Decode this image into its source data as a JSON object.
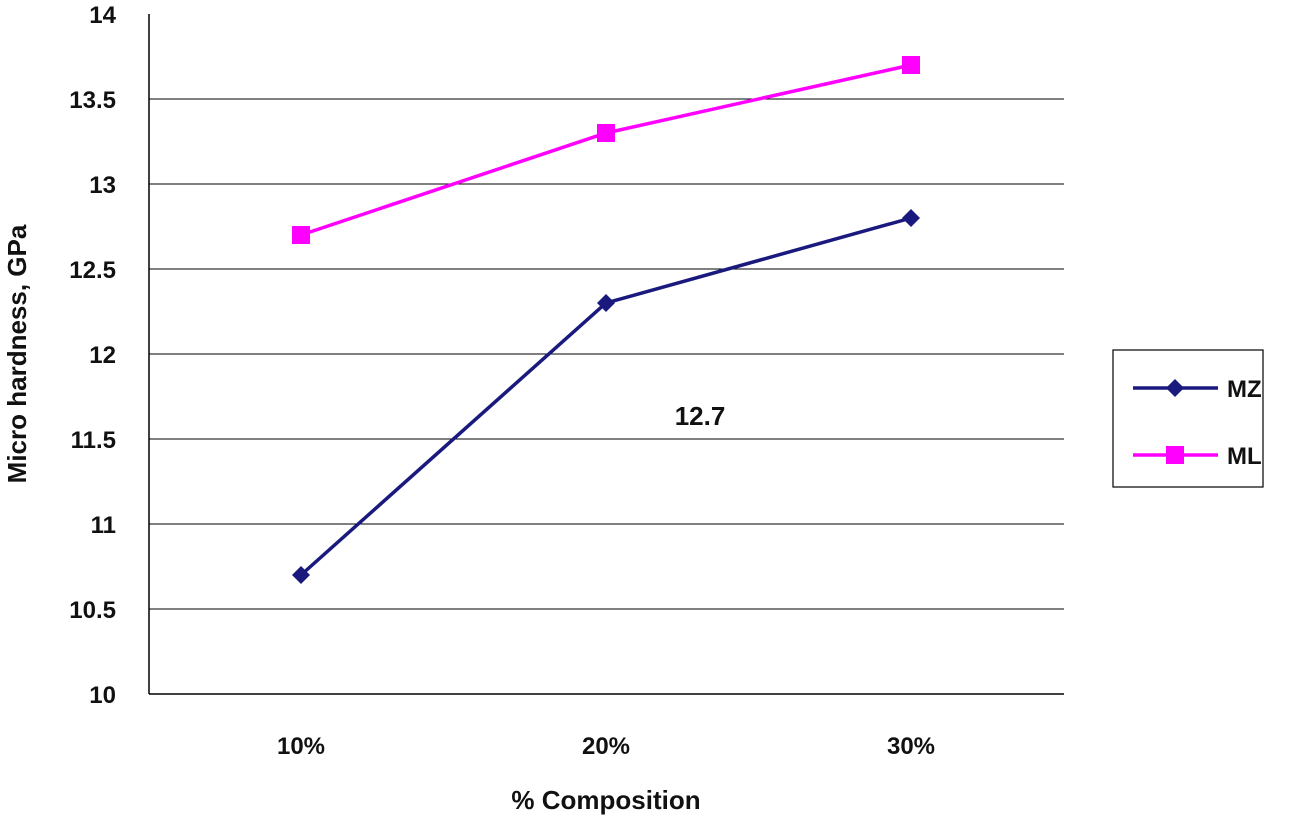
{
  "chart_data": {
    "type": "line",
    "categories": [
      "10%",
      "20%",
      "30%"
    ],
    "xlabel": "% Composition",
    "ylabel": "Micro hardness, GPa",
    "ylim": [
      10,
      14
    ],
    "yticks": [
      "10",
      "10.5",
      "11",
      "11.5",
      "12",
      "12.5",
      "13",
      "13.5",
      "14"
    ],
    "grid": "horizontal",
    "legend_position": "right",
    "annotation": "12.7",
    "series": [
      {
        "name": "MZ",
        "values": [
          10.7,
          12.3,
          12.8
        ],
        "color": "#1a1a7e",
        "marker": "diamond"
      },
      {
        "name": "ML",
        "values": [
          12.7,
          13.3,
          13.7
        ],
        "color": "#ff00ff",
        "marker": "square"
      }
    ]
  }
}
